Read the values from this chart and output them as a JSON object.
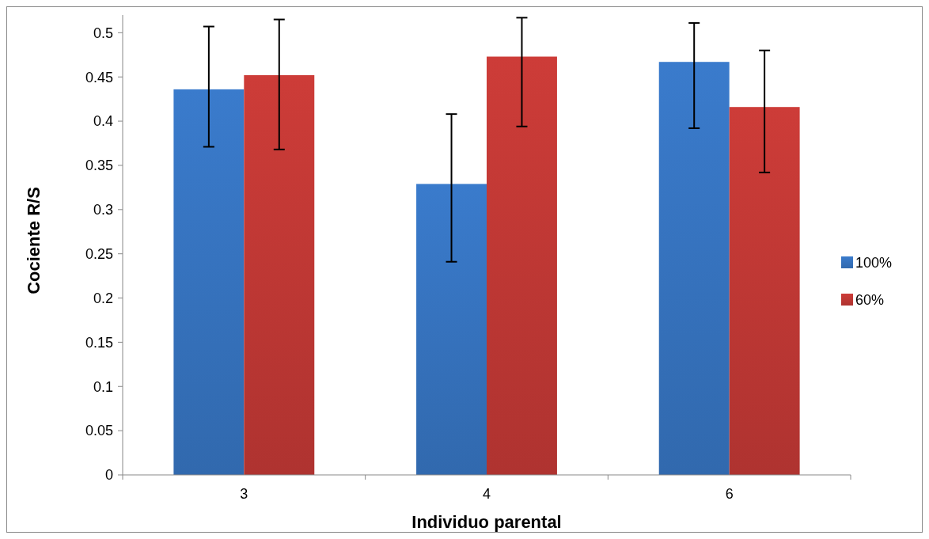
{
  "chart_data": {
    "type": "bar",
    "xlabel": "Individuo parental",
    "ylabel": "Cociente R/S",
    "categories": [
      "3",
      "4",
      "6"
    ],
    "series": [
      {
        "name": "100%",
        "color": "#3a7bcc",
        "values": [
          0.436,
          0.329,
          0.467
        ],
        "errors": [
          [
            0.371,
            0.507
          ],
          [
            0.241,
            0.408
          ],
          [
            0.392,
            0.511
          ]
        ]
      },
      {
        "name": "60%",
        "color": "#cd3c38",
        "values": [
          0.452,
          0.473,
          0.416
        ],
        "errors": [
          [
            0.368,
            0.515
          ],
          [
            0.394,
            0.517
          ],
          [
            0.342,
            0.48
          ]
        ]
      }
    ],
    "ylim": [
      0,
      0.52
    ],
    "yticks": [
      0,
      0.05,
      0.1,
      0.15,
      0.2,
      0.25,
      0.3,
      0.35,
      0.4,
      0.45,
      0.5
    ],
    "grid": false,
    "legend": "right"
  }
}
